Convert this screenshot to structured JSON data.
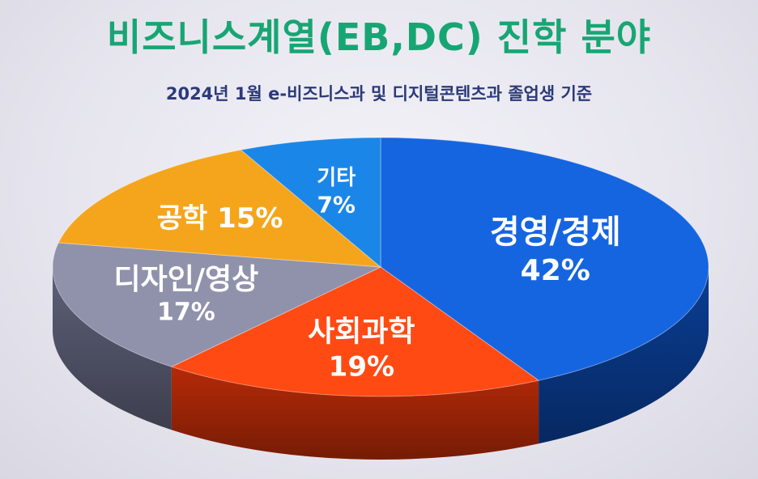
{
  "title": "비즈니스계열(EB,DC) 진학 분야",
  "subtitle": "2024년 1월 e-비즈니스과 및 디지털콘텐츠과 졸업생 기준",
  "chart_data": {
    "type": "pie",
    "title": "비즈니스계열(EB,DC) 진학 분야",
    "subtitle": "2024년 1월 e-비즈니스과 및 디지털콘텐츠과 졸업생 기준",
    "unit": "%",
    "slices": [
      {
        "label": "경영/경제",
        "value": 42,
        "value_label": "42%",
        "color": "#1565e0",
        "side_color": "#0a3e95"
      },
      {
        "label": "사회과학",
        "value": 19,
        "value_label": "19%",
        "color": "#ff4a14",
        "side_color": "#b52a08"
      },
      {
        "label": "디자인/영상",
        "value": 17,
        "value_label": "17%",
        "color": "#8f92aa",
        "side_color": "#5d6078"
      },
      {
        "label": "공학",
        "value": 15,
        "value_label": "15%",
        "color": "#f5a51c",
        "side_color": "#b87408"
      },
      {
        "label": "기타",
        "value": 7,
        "value_label": "7%",
        "color": "#1a86e8",
        "side_color": "#0c5aa8"
      }
    ]
  }
}
